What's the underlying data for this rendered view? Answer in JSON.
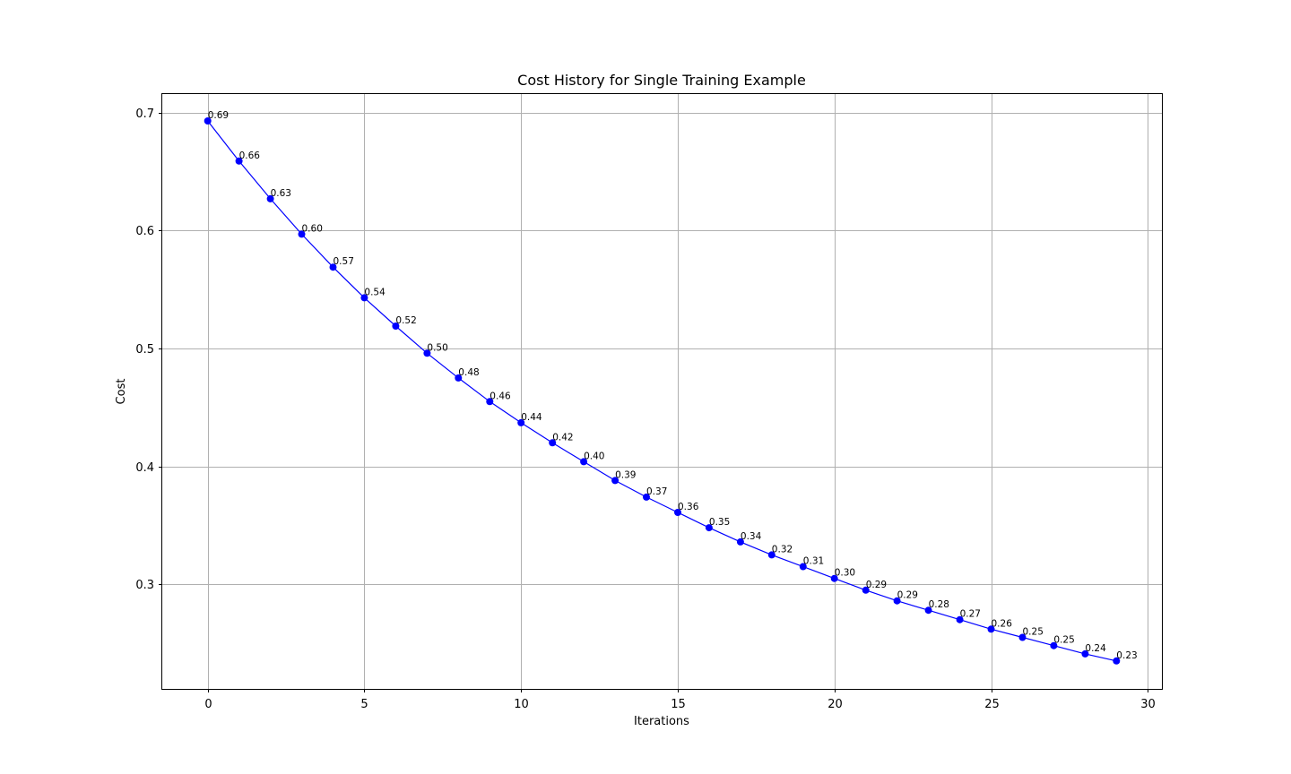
{
  "chart_data": {
    "type": "line",
    "title": "Cost History for Single Training Example",
    "xlabel": "Iterations",
    "ylabel": "Cost",
    "xlim": [
      -1.45,
      30.45
    ],
    "ylim": [
      0.2113,
      0.7158
    ],
    "xticks": [
      0,
      5,
      10,
      15,
      20,
      25,
      30
    ],
    "xtick_labels": [
      "0",
      "5",
      "10",
      "15",
      "20",
      "25",
      "30"
    ],
    "yticks": [
      0.3,
      0.4,
      0.5,
      0.6,
      0.7
    ],
    "ytick_labels": [
      "0.3",
      "0.4",
      "0.5",
      "0.6",
      "0.7"
    ],
    "grid": true,
    "color": "#0000ff",
    "marker": "circle",
    "series": [
      {
        "x": [
          0,
          1,
          2,
          3,
          4,
          5,
          6,
          7,
          8,
          9,
          10,
          11,
          12,
          13,
          14,
          15,
          16,
          17,
          18,
          19,
          20,
          21,
          22,
          23,
          24,
          25,
          26,
          27,
          28,
          29
        ],
        "values": [
          0.693,
          0.659,
          0.627,
          0.597,
          0.569,
          0.543,
          0.519,
          0.496,
          0.475,
          0.455,
          0.437,
          0.42,
          0.404,
          0.388,
          0.374,
          0.361,
          0.348,
          0.336,
          0.325,
          0.315,
          0.305,
          0.295,
          0.286,
          0.278,
          0.27,
          0.262,
          0.255,
          0.248,
          0.241,
          0.235
        ],
        "labels": [
          "0.69",
          "0.66",
          "0.63",
          "0.60",
          "0.57",
          "0.54",
          "0.52",
          "0.50",
          "0.48",
          "0.46",
          "0.44",
          "0.42",
          "0.40",
          "0.39",
          "0.37",
          "0.36",
          "0.35",
          "0.34",
          "0.32",
          "0.31",
          "0.30",
          "0.29",
          "0.29",
          "0.28",
          "0.27",
          "0.26",
          "0.25",
          "0.25",
          "0.24",
          "0.23"
        ]
      }
    ]
  }
}
